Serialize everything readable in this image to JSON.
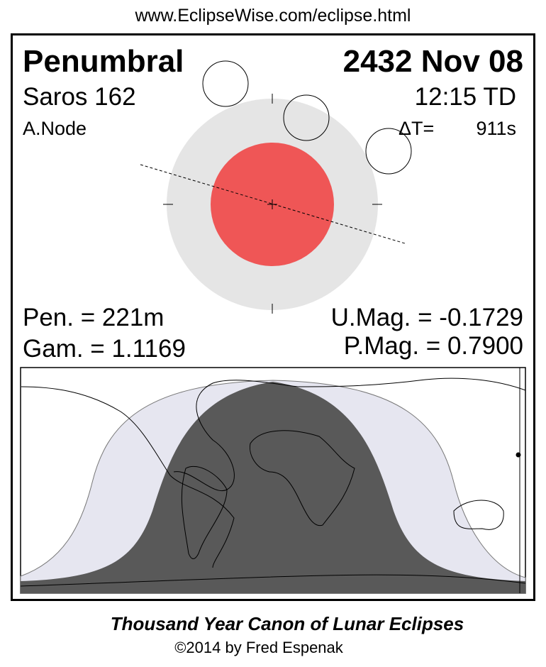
{
  "header": {
    "url": "www.EclipseWise.com/eclipse.html"
  },
  "eclipse": {
    "type": "Penumbral",
    "date": "2432 Nov 08",
    "saros": "Saros 162",
    "time": "12:15 TD",
    "node": "A.Node",
    "delta_t_label": "ΔT=",
    "delta_t_value": "911s",
    "pen_duration": "Pen. = 221m",
    "gamma": "Gam. = 1.1169",
    "umbral_mag": "U.Mag. = -0.1729",
    "penumbral_mag": "P.Mag. = 0.7900"
  },
  "colors": {
    "umbra": "#ef5656",
    "penumbra": "#e5e5e5",
    "map_umbral_zone": "#595959",
    "map_penumbral_zone": "#e6e6f0"
  },
  "footer": {
    "title": "Thousand Year Canon of Lunar Eclipses",
    "copyright": "©2014 by Fred Espenak"
  }
}
